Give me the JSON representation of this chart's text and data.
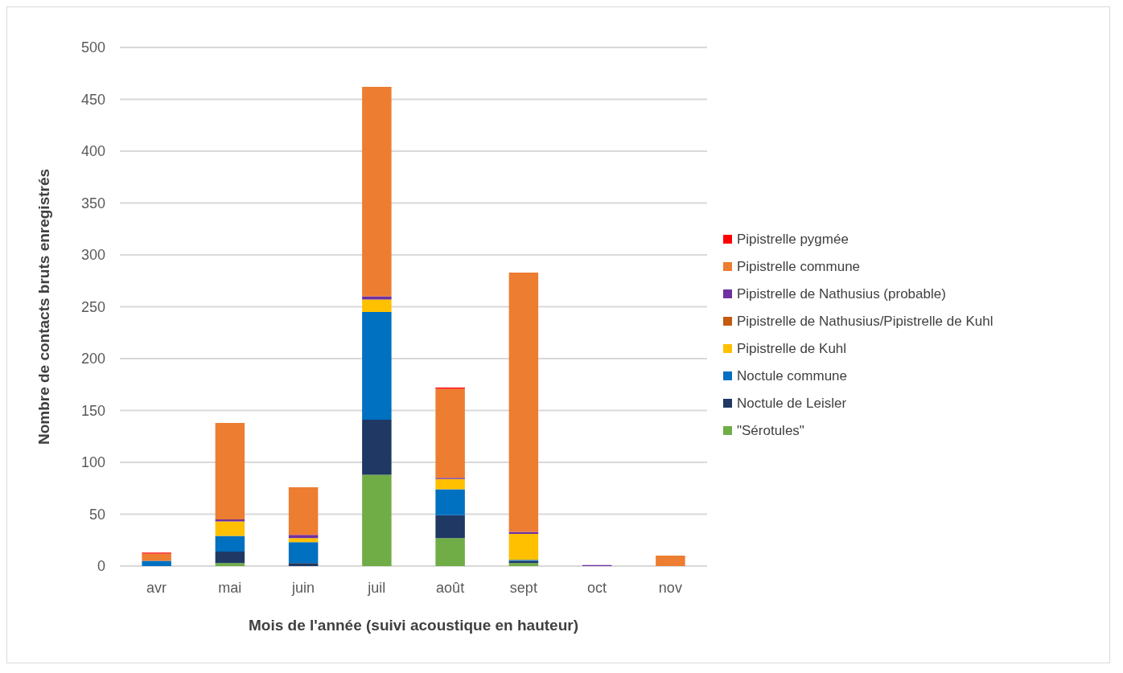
{
  "chart_data": {
    "type": "bar",
    "stacked": true,
    "xlabel": "Mois de l'année (suivi acoustique en hauteur)",
    "ylabel": "Nombre de contacts bruts enregistrés",
    "categories": [
      "avr",
      "mai",
      "juin",
      "juil",
      "août",
      "sept",
      "oct",
      "nov"
    ],
    "series": [
      {
        "name": "\"Sérotules\"",
        "color": "#70ad47",
        "values": [
          0,
          3,
          0,
          88,
          27,
          3,
          0,
          0
        ]
      },
      {
        "name": "Noctule de Leisler",
        "color": "#1f3864",
        "values": [
          0,
          11,
          3,
          53,
          22,
          2,
          0,
          0
        ]
      },
      {
        "name": "Noctule commune",
        "color": "#0070c0",
        "values": [
          5,
          15,
          20,
          104,
          25,
          1,
          0,
          0
        ]
      },
      {
        "name": "Pipistrelle de Kuhl",
        "color": "#ffc000",
        "values": [
          0,
          14,
          4,
          12,
          10,
          25,
          0,
          0
        ]
      },
      {
        "name": "Pipistrelle de Nathusius/Pipistrelle de Kuhl",
        "color": "#c55a11",
        "values": [
          0,
          0,
          0,
          0,
          0,
          0,
          0,
          0
        ]
      },
      {
        "name": "Pipistrelle de Nathusius (probable)",
        "color": "#7030a0",
        "values": [
          0,
          2,
          3,
          3,
          1,
          2,
          1,
          0
        ]
      },
      {
        "name": "Pipistrelle commune",
        "color": "#ed7d31",
        "values": [
          7,
          93,
          46,
          202,
          86,
          250,
          0,
          10
        ]
      },
      {
        "name": "Pipistrelle pygmée",
        "color": "#ff0000",
        "values": [
          1,
          0,
          0,
          0,
          1,
          0,
          0,
          0
        ]
      }
    ],
    "ylim": [
      0,
      500
    ],
    "yticks": [
      0,
      50,
      100,
      150,
      200,
      250,
      300,
      350,
      400,
      450,
      500
    ],
    "grid": "y",
    "legend": "right"
  }
}
